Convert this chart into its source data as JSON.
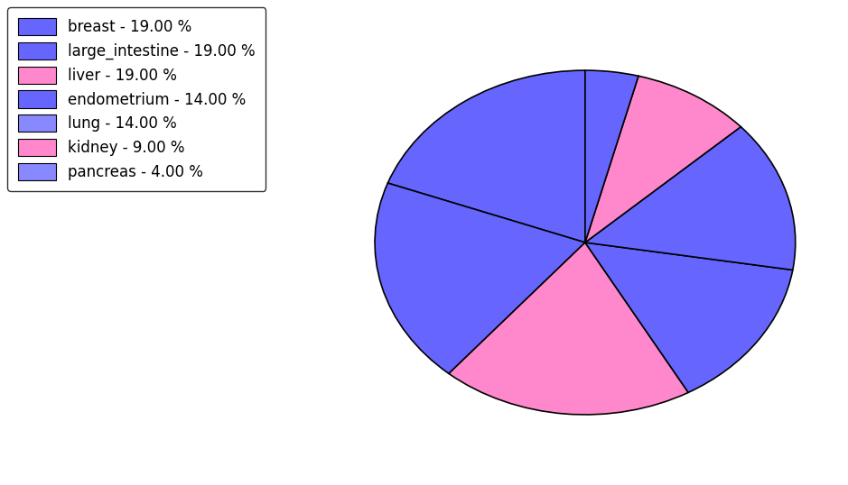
{
  "labels": [
    "breast",
    "large_intestine",
    "liver",
    "endometrium",
    "lung",
    "kidney",
    "pancreas"
  ],
  "values": [
    19,
    19,
    19,
    14,
    14,
    9,
    4
  ],
  "colors": [
    "#6666ff",
    "#6666ff",
    "#ff88cc",
    "#6666ff",
    "#6666ff",
    "#ff88cc",
    "#6666ff"
  ],
  "legend_labels": [
    "breast - 19.00 %",
    "large_intestine - 19.00 %",
    "liver - 19.00 %",
    "endometrium - 14.00 %",
    "lung - 14.00 %",
    "kidney - 9.00 %",
    "pancreas - 4.00 %"
  ],
  "legend_colors": [
    "#6666ff",
    "#6666ff",
    "#ff88cc",
    "#6666ff",
    "#8888ff",
    "#ff88cc",
    "#8888ff"
  ],
  "startangle": 90,
  "figsize": [
    9.39,
    5.38
  ],
  "dpi": 100
}
